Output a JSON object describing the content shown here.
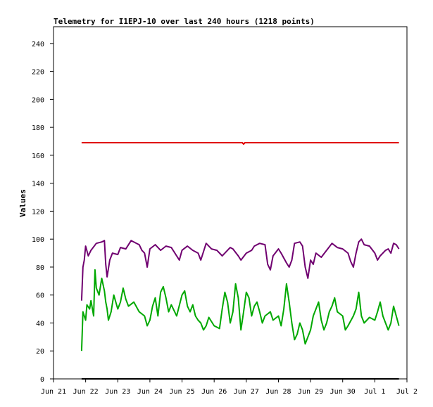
{
  "chart_data": {
    "type": "line",
    "title": "Telemetry for I1EPJ-10 over last 240 hours (1218 points)",
    "xlabel": "",
    "ylabel": "Values",
    "ylim": [
      0,
      252
    ],
    "y_ticks": [
      0,
      20,
      40,
      60,
      80,
      100,
      120,
      140,
      160,
      180,
      200,
      220,
      240
    ],
    "xlim": [
      "2024-06-21",
      "2024-07-02"
    ],
    "x_ticks": [
      {
        "x": "2024-06-21",
        "label": "Jun 21"
      },
      {
        "x": "2024-06-22",
        "label": "Jun 22"
      },
      {
        "x": "2024-06-23",
        "label": "Jun 23"
      },
      {
        "x": "2024-06-24",
        "label": "Jun 24"
      },
      {
        "x": "2024-06-25",
        "label": "Jun 25"
      },
      {
        "x": "2024-06-26",
        "label": "Jun 26"
      },
      {
        "x": "2024-06-27",
        "label": "Jun 27"
      },
      {
        "x": "2024-06-28",
        "label": "Jun 28"
      },
      {
        "x": "2024-06-29",
        "label": "Jun 29"
      },
      {
        "x": "2024-06-30",
        "label": "Jun 30"
      },
      {
        "x": "2024-07-01",
        "label": "Jul 1"
      },
      {
        "x": "2024-07-02",
        "label": "Jul 2"
      }
    ],
    "grid": false,
    "legend": "none",
    "series": [
      {
        "color": "#e00000",
        "points": [
          [
            "2024-06-21T21:00",
            169
          ],
          [
            "2024-06-23T00:00",
            169
          ],
          [
            "2024-06-25T00:00",
            169
          ],
          [
            "2024-06-26T21:00",
            169
          ],
          [
            "2024-06-26T22:00",
            168
          ],
          [
            "2024-06-26T23:00",
            169
          ],
          [
            "2024-06-29T00:00",
            169
          ],
          [
            "2024-07-01T00:00",
            169
          ],
          [
            "2024-07-01T18:00",
            169
          ]
        ]
      },
      {
        "color": "#700070",
        "points": [
          [
            "2024-06-21T21:00",
            56
          ],
          [
            "2024-06-21T22:00",
            80
          ],
          [
            "2024-06-21T23:00",
            85
          ],
          [
            "2024-06-22T00:00",
            95
          ],
          [
            "2024-06-22T02:00",
            88
          ],
          [
            "2024-06-22T04:00",
            92
          ],
          [
            "2024-06-22T08:00",
            97
          ],
          [
            "2024-06-22T12:00",
            98
          ],
          [
            "2024-06-22T14:00",
            99
          ],
          [
            "2024-06-22T15:00",
            82
          ],
          [
            "2024-06-22T16:00",
            73
          ],
          [
            "2024-06-22T18:00",
            85
          ],
          [
            "2024-06-22T20:00",
            90
          ],
          [
            "2024-06-23T00:00",
            89
          ],
          [
            "2024-06-23T02:00",
            94
          ],
          [
            "2024-06-23T06:00",
            93
          ],
          [
            "2024-06-23T10:00",
            99
          ],
          [
            "2024-06-23T14:00",
            97
          ],
          [
            "2024-06-23T16:00",
            96
          ],
          [
            "2024-06-23T18:00",
            92
          ],
          [
            "2024-06-23T20:00",
            90
          ],
          [
            "2024-06-23T22:00",
            80
          ],
          [
            "2024-06-24T00:00",
            93
          ],
          [
            "2024-06-24T04:00",
            96
          ],
          [
            "2024-06-24T08:00",
            92
          ],
          [
            "2024-06-24T12:00",
            95
          ],
          [
            "2024-06-24T16:00",
            94
          ],
          [
            "2024-06-24T20:00",
            88
          ],
          [
            "2024-06-24T22:00",
            85
          ],
          [
            "2024-06-25T00:00",
            92
          ],
          [
            "2024-06-25T04:00",
            95
          ],
          [
            "2024-06-25T08:00",
            92
          ],
          [
            "2024-06-25T12:00",
            90
          ],
          [
            "2024-06-25T14:00",
            85
          ],
          [
            "2024-06-25T18:00",
            97
          ],
          [
            "2024-06-25T22:00",
            93
          ],
          [
            "2024-06-26T02:00",
            92
          ],
          [
            "2024-06-26T06:00",
            88
          ],
          [
            "2024-06-26T08:00",
            90
          ],
          [
            "2024-06-26T12:00",
            94
          ],
          [
            "2024-06-26T14:00",
            93
          ],
          [
            "2024-06-26T18:00",
            88
          ],
          [
            "2024-06-26T20:00",
            85
          ],
          [
            "2024-06-27T00:00",
            90
          ],
          [
            "2024-06-27T04:00",
            92
          ],
          [
            "2024-06-27T06:00",
            95
          ],
          [
            "2024-06-27T10:00",
            97
          ],
          [
            "2024-06-27T14:00",
            96
          ],
          [
            "2024-06-27T16:00",
            82
          ],
          [
            "2024-06-27T18:00",
            78
          ],
          [
            "2024-06-27T20:00",
            88
          ],
          [
            "2024-06-28T00:00",
            93
          ],
          [
            "2024-06-28T02:00",
            90
          ],
          [
            "2024-06-28T06:00",
            83
          ],
          [
            "2024-06-28T08:00",
            80
          ],
          [
            "2024-06-28T10:00",
            85
          ],
          [
            "2024-06-28T12:00",
            97
          ],
          [
            "2024-06-28T16:00",
            98
          ],
          [
            "2024-06-28T18:00",
            95
          ],
          [
            "2024-06-28T20:00",
            80
          ],
          [
            "2024-06-28T22:00",
            72
          ],
          [
            "2024-06-29T00:00",
            85
          ],
          [
            "2024-06-29T02:00",
            82
          ],
          [
            "2024-06-29T04:00",
            90
          ],
          [
            "2024-06-29T08:00",
            87
          ],
          [
            "2024-06-29T12:00",
            92
          ],
          [
            "2024-06-29T16:00",
            97
          ],
          [
            "2024-06-29T20:00",
            94
          ],
          [
            "2024-06-30T00:00",
            93
          ],
          [
            "2024-06-30T04:00",
            90
          ],
          [
            "2024-06-30T06:00",
            84
          ],
          [
            "2024-06-30T08:00",
            80
          ],
          [
            "2024-06-30T10:00",
            90
          ],
          [
            "2024-06-30T12:00",
            98
          ],
          [
            "2024-06-30T14:00",
            100
          ],
          [
            "2024-06-30T16:00",
            96
          ],
          [
            "2024-06-30T20:00",
            95
          ],
          [
            "2024-07-01T00:00",
            90
          ],
          [
            "2024-07-01T02:00",
            85
          ],
          [
            "2024-07-01T04:00",
            88
          ],
          [
            "2024-07-01T08:00",
            92
          ],
          [
            "2024-07-01T10:00",
            93
          ],
          [
            "2024-07-01T12:00",
            90
          ],
          [
            "2024-07-01T14:00",
            97
          ],
          [
            "2024-07-01T16:00",
            96
          ],
          [
            "2024-07-01T18:00",
            93
          ]
        ]
      },
      {
        "color": "#00a800",
        "points": [
          [
            "2024-06-21T21:00",
            20
          ],
          [
            "2024-06-21T22:00",
            48
          ],
          [
            "2024-06-22T00:00",
            42
          ],
          [
            "2024-06-22T01:00",
            53
          ],
          [
            "2024-06-22T03:00",
            50
          ],
          [
            "2024-06-22T04:00",
            56
          ],
          [
            "2024-06-22T06:00",
            45
          ],
          [
            "2024-06-22T07:00",
            78
          ],
          [
            "2024-06-22T08:00",
            65
          ],
          [
            "2024-06-22T10:00",
            60
          ],
          [
            "2024-06-22T12:00",
            72
          ],
          [
            "2024-06-22T14:00",
            63
          ],
          [
            "2024-06-22T15:00",
            55
          ],
          [
            "2024-06-22T16:00",
            50
          ],
          [
            "2024-06-22T17:00",
            42
          ],
          [
            "2024-06-22T19:00",
            48
          ],
          [
            "2024-06-22T21:00",
            60
          ],
          [
            "2024-06-23T00:00",
            50
          ],
          [
            "2024-06-23T02:00",
            55
          ],
          [
            "2024-06-23T04:00",
            65
          ],
          [
            "2024-06-23T06:00",
            57
          ],
          [
            "2024-06-23T08:00",
            52
          ],
          [
            "2024-06-23T12:00",
            55
          ],
          [
            "2024-06-23T16:00",
            48
          ],
          [
            "2024-06-23T20:00",
            45
          ],
          [
            "2024-06-23T22:00",
            38
          ],
          [
            "2024-06-24T00:00",
            42
          ],
          [
            "2024-06-24T02:00",
            52
          ],
          [
            "2024-06-24T04:00",
            58
          ],
          [
            "2024-06-24T06:00",
            45
          ],
          [
            "2024-06-24T08:00",
            62
          ],
          [
            "2024-06-24T10:00",
            66
          ],
          [
            "2024-06-24T12:00",
            58
          ],
          [
            "2024-06-24T14:00",
            48
          ],
          [
            "2024-06-24T16:00",
            53
          ],
          [
            "2024-06-24T20:00",
            45
          ],
          [
            "2024-06-25T00:00",
            60
          ],
          [
            "2024-06-25T02:00",
            63
          ],
          [
            "2024-06-25T04:00",
            52
          ],
          [
            "2024-06-25T06:00",
            48
          ],
          [
            "2024-06-25T08:00",
            53
          ],
          [
            "2024-06-25T10:00",
            45
          ],
          [
            "2024-06-25T12:00",
            42
          ],
          [
            "2024-06-25T14:00",
            40
          ],
          [
            "2024-06-25T16:00",
            35
          ],
          [
            "2024-06-25T18:00",
            38
          ],
          [
            "2024-06-25T20:00",
            44
          ],
          [
            "2024-06-26T00:00",
            38
          ],
          [
            "2024-06-26T04:00",
            36
          ],
          [
            "2024-06-26T06:00",
            50
          ],
          [
            "2024-06-26T08:00",
            62
          ],
          [
            "2024-06-26T10:00",
            55
          ],
          [
            "2024-06-26T12:00",
            40
          ],
          [
            "2024-06-26T14:00",
            48
          ],
          [
            "2024-06-26T16:00",
            68
          ],
          [
            "2024-06-26T18:00",
            58
          ],
          [
            "2024-06-26T20:00",
            35
          ],
          [
            "2024-06-26T22:00",
            48
          ],
          [
            "2024-06-27T00:00",
            62
          ],
          [
            "2024-06-27T02:00",
            58
          ],
          [
            "2024-06-27T04:00",
            45
          ],
          [
            "2024-06-27T06:00",
            52
          ],
          [
            "2024-06-27T08:00",
            55
          ],
          [
            "2024-06-27T10:00",
            48
          ],
          [
            "2024-06-27T12:00",
            40
          ],
          [
            "2024-06-27T14:00",
            45
          ],
          [
            "2024-06-27T18:00",
            48
          ],
          [
            "2024-06-27T20:00",
            42
          ],
          [
            "2024-06-28T00:00",
            45
          ],
          [
            "2024-06-28T02:00",
            38
          ],
          [
            "2024-06-28T04:00",
            50
          ],
          [
            "2024-06-28T06:00",
            68
          ],
          [
            "2024-06-28T08:00",
            55
          ],
          [
            "2024-06-28T10:00",
            40
          ],
          [
            "2024-06-28T12:00",
            28
          ],
          [
            "2024-06-28T14:00",
            32
          ],
          [
            "2024-06-28T16:00",
            40
          ],
          [
            "2024-06-28T18:00",
            35
          ],
          [
            "2024-06-28T20:00",
            25
          ],
          [
            "2024-06-29T00:00",
            35
          ],
          [
            "2024-06-29T02:00",
            45
          ],
          [
            "2024-06-29T04:00",
            50
          ],
          [
            "2024-06-29T06:00",
            55
          ],
          [
            "2024-06-29T08:00",
            42
          ],
          [
            "2024-06-29T10:00",
            35
          ],
          [
            "2024-06-29T12:00",
            40
          ],
          [
            "2024-06-29T14:00",
            48
          ],
          [
            "2024-06-29T16:00",
            52
          ],
          [
            "2024-06-29T18:00",
            58
          ],
          [
            "2024-06-29T20:00",
            48
          ],
          [
            "2024-06-30T00:00",
            45
          ],
          [
            "2024-06-30T02:00",
            35
          ],
          [
            "2024-06-30T04:00",
            38
          ],
          [
            "2024-06-30T08:00",
            45
          ],
          [
            "2024-06-30T10:00",
            50
          ],
          [
            "2024-06-30T12:00",
            62
          ],
          [
            "2024-06-30T14:00",
            45
          ],
          [
            "2024-06-30T16:00",
            40
          ],
          [
            "2024-06-30T20:00",
            44
          ],
          [
            "2024-07-01T00:00",
            42
          ],
          [
            "2024-07-01T02:00",
            48
          ],
          [
            "2024-07-01T04:00",
            55
          ],
          [
            "2024-07-01T06:00",
            45
          ],
          [
            "2024-07-01T08:00",
            40
          ],
          [
            "2024-07-01T10:00",
            35
          ],
          [
            "2024-07-01T12:00",
            40
          ],
          [
            "2024-07-01T14:00",
            52
          ],
          [
            "2024-07-01T16:00",
            45
          ],
          [
            "2024-07-01T18:00",
            38
          ]
        ]
      },
      {
        "color": "#000000",
        "points": [
          [
            "2024-06-21T21:00",
            0
          ],
          [
            "2024-07-01T18:00",
            0
          ]
        ]
      }
    ]
  }
}
